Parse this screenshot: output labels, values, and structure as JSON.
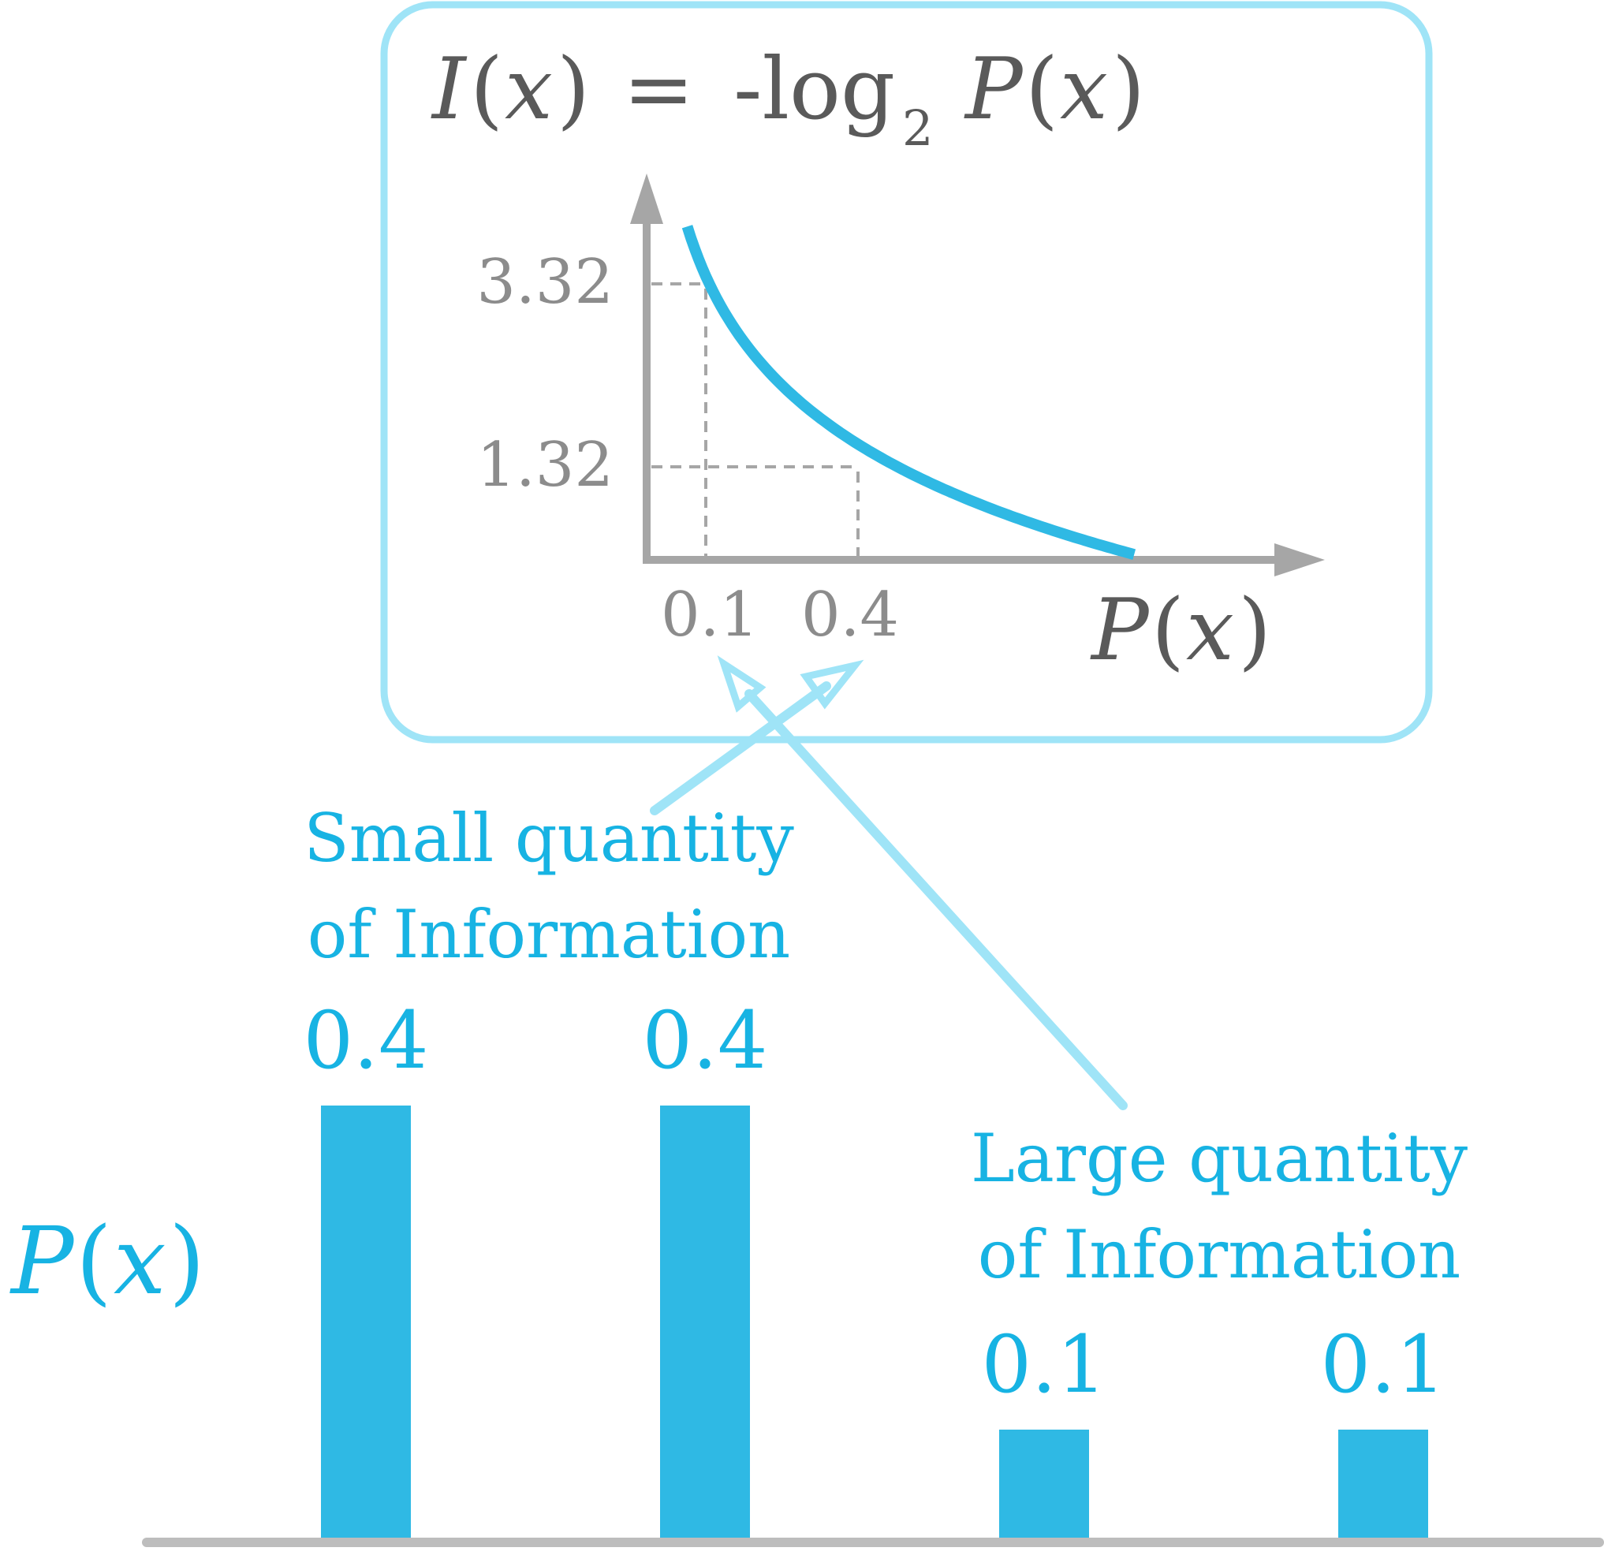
{
  "formula": {
    "lhs_fn": "I",
    "lhs_open": "(",
    "lhs_var": "x",
    "lhs_close": ")",
    "equals": "=",
    "neg_log": "-log",
    "base": "2",
    "rhs_fn": "P",
    "rhs_open": "(",
    "rhs_var": "x",
    "rhs_close": ")"
  },
  "inset_chart": {
    "y_ticks": [
      "3.32",
      "1.32"
    ],
    "x_ticks": [
      "0.1",
      "0.4"
    ],
    "x_axis_label": {
      "fn": "P",
      "open": "(",
      "var": "x",
      "close": ")"
    }
  },
  "annotations": {
    "small_line1": "Small quantity",
    "small_line2": "of Information",
    "large_line1": "Large quantity",
    "large_line2": "of Information"
  },
  "bar_axis_label": {
    "fn": "P",
    "open": "(",
    "var": "x",
    "close": ")"
  },
  "colors": {
    "accent": "#2fb9e4",
    "accent_light": "#9fe4f7",
    "axis_gray": "#a6a6a6",
    "text_gray": "#8c8c8c",
    "formula_gray": "#5a5a5a",
    "baseline_gray": "#bdbdbd"
  },
  "chart_data": [
    {
      "type": "line",
      "function": "-log2(x)",
      "x": [
        0.08,
        0.1,
        0.15,
        0.2,
        0.3,
        0.4,
        0.5,
        0.6,
        0.7,
        0.8,
        0.9,
        0.96
      ],
      "y": [
        3.64,
        3.32,
        2.74,
        2.32,
        1.74,
        1.32,
        1.0,
        0.74,
        0.51,
        0.32,
        0.15,
        0.06
      ],
      "highlight_points": [
        {
          "x": 0.1,
          "y": 3.32
        },
        {
          "x": 0.4,
          "y": 1.32
        }
      ],
      "grid": false
    },
    {
      "type": "bar",
      "values": [
        0.4,
        0.4,
        0.1,
        0.1
      ],
      "value_labels": [
        "0.4",
        "0.4",
        "0.1",
        "0.1"
      ],
      "ylim": [
        0,
        0.4
      ]
    }
  ]
}
